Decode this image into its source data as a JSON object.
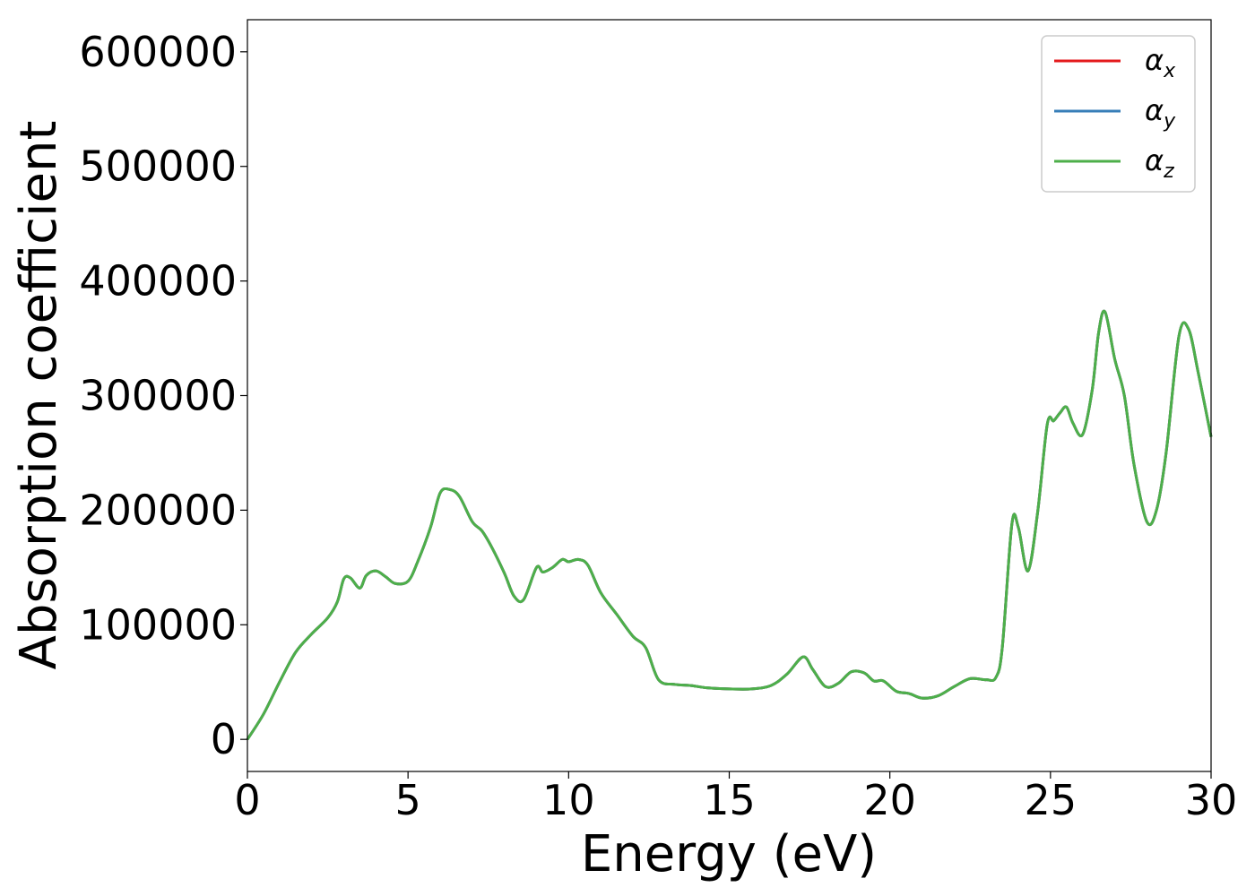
{
  "chart_data": {
    "type": "line",
    "title": "",
    "xlabel": "Energy (eV)",
    "ylabel": "Absorption coefficient",
    "xlim": [
      0,
      30
    ],
    "ylim": [
      -28000,
      628000
    ],
    "x_ticks": [
      "0",
      "5",
      "10",
      "15",
      "20",
      "25",
      "30"
    ],
    "x_tick_values": [
      0,
      5,
      10,
      15,
      20,
      25,
      30
    ],
    "y_ticks": [
      "0",
      "100000",
      "200000",
      "300000",
      "400000",
      "500000",
      "600000"
    ],
    "y_tick_values": [
      0,
      100000,
      200000,
      300000,
      400000,
      500000,
      600000
    ],
    "grid": false,
    "legend_position": "top-right",
    "x": [
      0,
      0.5,
      1.0,
      1.5,
      2.0,
      2.5,
      2.8,
      3.0,
      3.2,
      3.5,
      3.7,
      4.0,
      4.3,
      4.6,
      5.0,
      5.3,
      5.7,
      6.0,
      6.3,
      6.6,
      7.0,
      7.3,
      7.6,
      8.0,
      8.3,
      8.6,
      9.0,
      9.2,
      9.5,
      9.8,
      10.0,
      10.3,
      10.6,
      11.0,
      11.5,
      12.0,
      12.4,
      12.8,
      13.3,
      13.8,
      14.3,
      15.0,
      15.7,
      16.3,
      16.8,
      17.3,
      17.6,
      18.0,
      18.4,
      18.8,
      19.2,
      19.5,
      19.8,
      20.2,
      20.6,
      21.0,
      21.5,
      22.0,
      22.5,
      23.0,
      23.3,
      23.5,
      23.8,
      24.0,
      24.3,
      24.6,
      24.9,
      25.1,
      25.3,
      25.5,
      25.7,
      26.0,
      26.3,
      26.5,
      26.7,
      27.0,
      27.3,
      27.6,
      28.0,
      28.3,
      28.6,
      29.0,
      29.3,
      29.6,
      30.0
    ],
    "series": [
      {
        "name": "α_x",
        "color": "#e41a1c",
        "values": [
          0,
          22000,
          50000,
          76000,
          92000,
          106000,
          120000,
          140000,
          141000,
          132000,
          143000,
          147000,
          142000,
          136000,
          138000,
          155000,
          185000,
          215000,
          218000,
          212000,
          190000,
          182000,
          168000,
          145000,
          125000,
          122000,
          150000,
          146000,
          150000,
          157000,
          155000,
          157000,
          152000,
          128000,
          109000,
          90000,
          80000,
          52000,
          48000,
          47000,
          45000,
          44000,
          44000,
          47000,
          57000,
          72000,
          61000,
          46000,
          49000,
          59000,
          58000,
          51000,
          51000,
          42000,
          40000,
          36000,
          38000,
          46000,
          53000,
          52000,
          54000,
          80000,
          188000,
          185000,
          147000,
          198000,
          275000,
          278000,
          285000,
          290000,
          276000,
          266000,
          305000,
          355000,
          373000,
          332000,
          300000,
          240000,
          190000,
          200000,
          250000,
          352000,
          358000,
          320000,
          264000
        ]
      },
      {
        "name": "α_y",
        "color": "#377eb8",
        "values": [
          0,
          22000,
          50000,
          76000,
          92000,
          106000,
          120000,
          140000,
          141000,
          132000,
          143000,
          147000,
          142000,
          136000,
          138000,
          155000,
          185000,
          215000,
          218000,
          212000,
          190000,
          182000,
          168000,
          145000,
          125000,
          122000,
          150000,
          146000,
          150000,
          157000,
          155000,
          157000,
          152000,
          128000,
          109000,
          90000,
          80000,
          52000,
          48000,
          47000,
          45000,
          44000,
          44000,
          47000,
          57000,
          72000,
          61000,
          46000,
          49000,
          59000,
          58000,
          51000,
          51000,
          42000,
          40000,
          36000,
          38000,
          46000,
          53000,
          52000,
          54000,
          80000,
          188000,
          185000,
          147000,
          198000,
          275000,
          278000,
          285000,
          290000,
          276000,
          266000,
          305000,
          355000,
          373000,
          332000,
          300000,
          240000,
          190000,
          200000,
          250000,
          352000,
          358000,
          320000,
          264000
        ]
      },
      {
        "name": "α_z",
        "color": "#4daf4a",
        "values": [
          0,
          22000,
          50000,
          76000,
          92000,
          106000,
          120000,
          140000,
          141000,
          132000,
          143000,
          147000,
          142000,
          136000,
          138000,
          155000,
          185000,
          215000,
          218000,
          212000,
          190000,
          182000,
          168000,
          145000,
          125000,
          122000,
          150000,
          146000,
          150000,
          157000,
          155000,
          157000,
          152000,
          128000,
          109000,
          90000,
          80000,
          52000,
          48000,
          47000,
          45000,
          44000,
          44000,
          47000,
          57000,
          72000,
          61000,
          46000,
          49000,
          59000,
          58000,
          51000,
          51000,
          42000,
          40000,
          36000,
          38000,
          46000,
          53000,
          52000,
          54000,
          80000,
          188000,
          185000,
          147000,
          198000,
          275000,
          278000,
          285000,
          290000,
          276000,
          266000,
          305000,
          355000,
          373000,
          332000,
          300000,
          240000,
          190000,
          200000,
          250000,
          352000,
          358000,
          320000,
          264000
        ]
      }
    ]
  },
  "legend": [
    {
      "symbol": "α",
      "sub": "x",
      "color": "#e41a1c"
    },
    {
      "symbol": "α",
      "sub": "y",
      "color": "#377eb8"
    },
    {
      "symbol": "α",
      "sub": "z",
      "color": "#4daf4a"
    }
  ]
}
